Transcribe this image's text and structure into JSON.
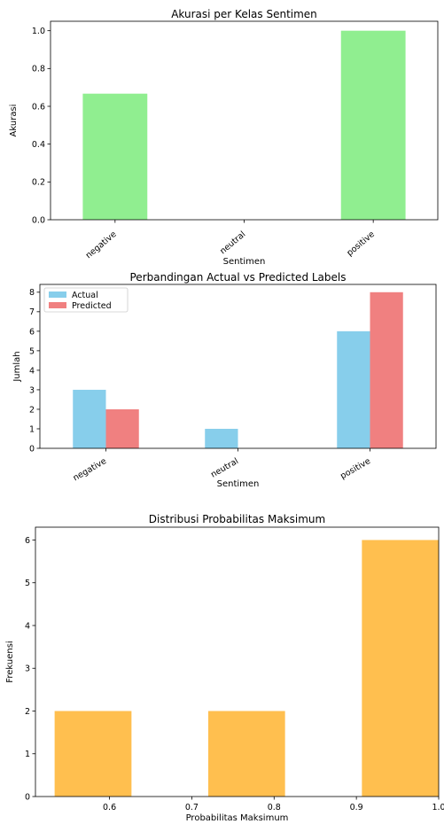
{
  "chart_data": [
    {
      "type": "bar",
      "title": "Akurasi per Kelas Sentimen",
      "xlabel": "Sentimen",
      "ylabel": "Akurasi",
      "categories": [
        "negative",
        "neutral",
        "positive"
      ],
      "values": [
        0.667,
        0.0,
        1.0
      ],
      "ylim": [
        0,
        1.05
      ],
      "yticks": [
        "0.0",
        "0.2",
        "0.4",
        "0.6",
        "0.8",
        "1.0"
      ],
      "color": "#90EE90",
      "grid": false
    },
    {
      "type": "bar",
      "title": "Perbandingan Actual vs Predicted Labels",
      "xlabel": "Sentimen",
      "ylabel": "Jumlah",
      "categories": [
        "negative",
        "neutral",
        "positive"
      ],
      "series": [
        {
          "name": "Actual",
          "values": [
            3,
            1,
            6
          ],
          "color": "#87CEEB"
        },
        {
          "name": "Predicted",
          "values": [
            2,
            0,
            8
          ],
          "color": "#F08080"
        }
      ],
      "ylim": [
        0,
        8.4
      ],
      "yticks": [
        "0",
        "1",
        "2",
        "3",
        "4",
        "5",
        "6",
        "7",
        "8"
      ],
      "legend": "top-left",
      "grid": false
    },
    {
      "type": "bar",
      "title": "Distribusi Probabilitas Maksimum",
      "xlabel": "Probabilitas Maksimum",
      "ylabel": "Frekuensi",
      "bins": [
        {
          "start": 0.5333,
          "end": 0.6267,
          "count": 2
        },
        {
          "start": 0.72,
          "end": 0.8133,
          "count": 2
        },
        {
          "start": 0.9067,
          "end": 1.0,
          "count": 6
        }
      ],
      "xlim": [
        0.51,
        1.0
      ],
      "ylim": [
        0,
        6.3
      ],
      "xticks": [
        "0.6",
        "0.7",
        "0.8",
        "0.9",
        "1.0"
      ],
      "yticks": [
        "0",
        "1",
        "2",
        "3",
        "4",
        "5",
        "6"
      ],
      "color": "#FFBF4F",
      "grid": false
    }
  ]
}
